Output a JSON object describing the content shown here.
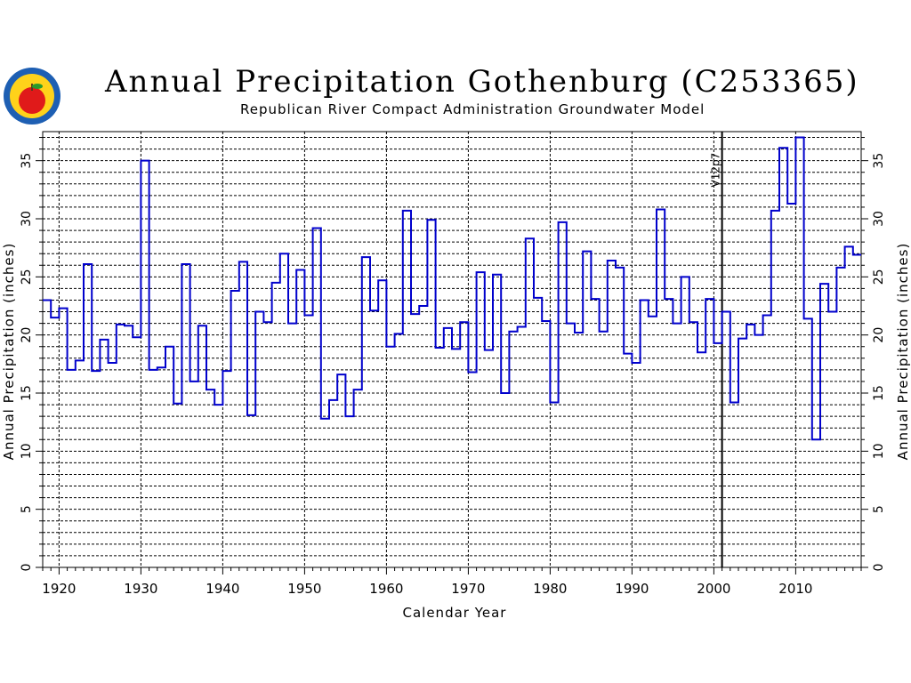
{
  "header": {
    "title": "Annual Precipitation Gothenburg (C253365)",
    "subtitle": "Republican River Compact Administration Groundwater Model"
  },
  "chart_data": {
    "type": "line",
    "style": "step",
    "title": "Annual Precipitation Gothenburg (C253365)",
    "subtitle": "Republican River Compact Administration Groundwater Model",
    "xlabel": "Calendar Year",
    "ylabel": "Annual Precipitation (inches)",
    "xlim": [
      1918,
      2018
    ],
    "ylim": [
      0,
      37.5
    ],
    "xticks": [
      1920,
      1930,
      1940,
      1950,
      1960,
      1970,
      1980,
      1990,
      2000,
      2010
    ],
    "yticks": [
      0,
      5,
      10,
      15,
      20,
      25,
      30,
      35
    ],
    "grid": true,
    "line_color": "#0000cc",
    "annotation": {
      "text": "V12p7",
      "x": 2001
    },
    "series": [
      {
        "x": [
          1918,
          1919,
          1920,
          1921,
          1922,
          1923,
          1924,
          1925,
          1926,
          1927,
          1928,
          1929,
          1930,
          1931,
          1932,
          1933,
          1934,
          1935,
          1936,
          1937,
          1938,
          1939,
          1940,
          1941,
          1942,
          1943,
          1944,
          1945,
          1946,
          1947,
          1948,
          1949,
          1950,
          1951,
          1952,
          1953,
          1954,
          1955,
          1956,
          1957,
          1958,
          1959,
          1960,
          1961,
          1962,
          1963,
          1964,
          1965,
          1966,
          1967,
          1968,
          1969,
          1970,
          1971,
          1972,
          1973,
          1974,
          1975,
          1976,
          1977,
          1978,
          1979,
          1980,
          1981,
          1982,
          1983,
          1984,
          1985,
          1986,
          1987,
          1988,
          1989,
          1990,
          1991,
          1992,
          1993,
          1994,
          1995,
          1996,
          1997,
          1998,
          1999,
          2000,
          2001,
          2002,
          2003,
          2004,
          2005,
          2006,
          2007,
          2008,
          2009,
          2010,
          2011,
          2012,
          2013,
          2014,
          2015,
          2016,
          2017
        ],
        "y": [
          23.0,
          21.5,
          22.3,
          17.0,
          17.8,
          26.1,
          16.9,
          19.6,
          17.6,
          20.9,
          20.8,
          19.8,
          35.0,
          17.0,
          17.2,
          19.0,
          14.1,
          26.1,
          16.0,
          20.8,
          15.3,
          14.0,
          16.9,
          23.8,
          26.3,
          13.1,
          22.0,
          21.1,
          24.5,
          27.0,
          21.0,
          25.6,
          21.7,
          29.2,
          12.8,
          14.4,
          16.6,
          13.0,
          15.3,
          26.7,
          22.1,
          24.7,
          19.0,
          20.1,
          30.7,
          21.8,
          22.5,
          29.9,
          18.9,
          20.6,
          18.8,
          21.1,
          16.8,
          25.4,
          18.7,
          25.2,
          15.0,
          20.3,
          20.7,
          28.3,
          23.2,
          21.2,
          14.2,
          29.7,
          21.0,
          20.2,
          27.2,
          23.1,
          20.3,
          26.4,
          25.8,
          18.4,
          17.6,
          23.0,
          21.6,
          30.8,
          23.1,
          21.0,
          25.0,
          21.1,
          18.5,
          23.1,
          19.3,
          22.0,
          14.2,
          19.7,
          20.9,
          20.0,
          21.7,
          30.7,
          36.1,
          31.3,
          37.0,
          21.4,
          11.0,
          24.4,
          22.0,
          25.8,
          27.6,
          26.9
        ]
      }
    ]
  }
}
